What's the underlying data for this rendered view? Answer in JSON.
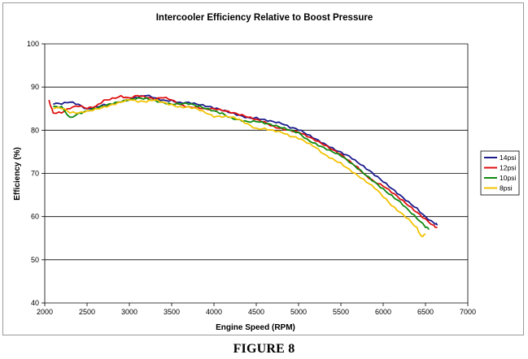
{
  "caption": "FIGURE 8",
  "chart_data": {
    "type": "line",
    "title": "Intercooler Efficiency Relative to Boost Pressure",
    "xlabel": "Engine Speed (RPM)",
    "ylabel": "Efficiency (%)",
    "xlim": [
      2000,
      7000
    ],
    "ylim": [
      40,
      100
    ],
    "xticks": [
      2000,
      2500,
      3000,
      3500,
      4000,
      4500,
      5000,
      5500,
      6000,
      6500,
      7000
    ],
    "yticks": [
      40,
      50,
      60,
      70,
      80,
      90,
      100
    ],
    "grid": "horizontal",
    "legend_position": "right",
    "series": [
      {
        "name": "14psi",
        "color": "#1a1a8c",
        "x": [
          2100,
          2200,
          2300,
          2400,
          2500,
          2600,
          2700,
          2800,
          2900,
          3000,
          3100,
          3200,
          3300,
          3400,
          3500,
          3600,
          3700,
          3800,
          3900,
          4000,
          4100,
          4200,
          4300,
          4400,
          4500,
          4600,
          4700,
          4800,
          4900,
          5000,
          5100,
          5200,
          5300,
          5400,
          5500,
          5600,
          5700,
          5800,
          5900,
          6000,
          6100,
          6200,
          6300,
          6400,
          6500,
          6600,
          6640
        ],
        "y": [
          86,
          86,
          86.5,
          86,
          85,
          85.5,
          86,
          86,
          86.5,
          87,
          87.5,
          88,
          87.5,
          87,
          87,
          86.5,
          86.5,
          86,
          85.5,
          85,
          84.5,
          84,
          83.5,
          83,
          83,
          82.5,
          82,
          81.5,
          80.5,
          80,
          79,
          78,
          77,
          76,
          75,
          74,
          72.5,
          71,
          69.5,
          68,
          66.5,
          65,
          63.5,
          62,
          60,
          58.5,
          58
        ]
      },
      {
        "name": "12psi",
        "color": "#e01010",
        "x": [
          2050,
          2100,
          2200,
          2300,
          2400,
          2500,
          2600,
          2700,
          2800,
          2900,
          3000,
          3100,
          3200,
          3300,
          3400,
          3500,
          3600,
          3700,
          3800,
          3900,
          4000,
          4100,
          4200,
          4300,
          4400,
          4500,
          4600,
          4700,
          4800,
          4900,
          5000,
          5100,
          5200,
          5300,
          5400,
          5500,
          5600,
          5700,
          5800,
          5900,
          6000,
          6100,
          6200,
          6300,
          6400,
          6500,
          6600,
          6640
        ],
        "y": [
          87,
          84,
          84,
          85,
          85.5,
          85,
          85.5,
          87,
          87.5,
          88,
          87.5,
          88,
          87.5,
          87,
          87.5,
          87,
          86,
          85.5,
          85.5,
          85,
          85,
          84.5,
          84,
          83.5,
          83,
          82.5,
          82,
          81,
          80.5,
          80,
          79.5,
          78.5,
          77.5,
          76.5,
          75.5,
          74.5,
          73,
          71.5,
          69.5,
          68,
          67,
          65.5,
          64,
          62.5,
          61,
          59.5,
          58,
          57.5
        ]
      },
      {
        "name": "10psi",
        "color": "#108a10",
        "x": [
          2100,
          2200,
          2300,
          2400,
          2500,
          2600,
          2700,
          2800,
          2900,
          3000,
          3100,
          3200,
          3300,
          3400,
          3500,
          3600,
          3700,
          3800,
          3900,
          4000,
          4100,
          4200,
          4300,
          4400,
          4500,
          4600,
          4700,
          4800,
          4900,
          5000,
          5100,
          5200,
          5300,
          5400,
          5500,
          5600,
          5700,
          5800,
          5900,
          6000,
          6100,
          6200,
          6300,
          6400,
          6500,
          6540
        ],
        "y": [
          85.5,
          85.5,
          83,
          84,
          84.5,
          85,
          85.5,
          86,
          86.5,
          87,
          87.5,
          87.5,
          87,
          86.5,
          86,
          86,
          86,
          85.5,
          85,
          84.5,
          84,
          83,
          82.5,
          82,
          82,
          81.5,
          81,
          80.5,
          80,
          79.5,
          78,
          77,
          76,
          75,
          74,
          72.5,
          71,
          69.5,
          68,
          66.5,
          65,
          63.5,
          61.5,
          59.5,
          57.5,
          57
        ]
      },
      {
        "name": "8psi",
        "color": "#f2c200",
        "x": [
          2100,
          2200,
          2300,
          2400,
          2500,
          2600,
          2700,
          2800,
          2900,
          3000,
          3100,
          3200,
          3300,
          3400,
          3500,
          3600,
          3700,
          3800,
          3900,
          4000,
          4100,
          4200,
          4300,
          4400,
          4500,
          4600,
          4700,
          4800,
          4900,
          5000,
          5100,
          5200,
          5300,
          5400,
          5500,
          5600,
          5700,
          5800,
          5900,
          6000,
          6100,
          6200,
          6300,
          6400,
          6450,
          6500
        ],
        "y": [
          85,
          85,
          84,
          84,
          84.5,
          85,
          85.5,
          86,
          86.5,
          87,
          86.5,
          86.5,
          87,
          86.5,
          86,
          85.5,
          85.5,
          85,
          84,
          83,
          83,
          83,
          82.5,
          81.5,
          80.5,
          80.5,
          80,
          79.5,
          78.5,
          78,
          77,
          76,
          74.5,
          73.5,
          72.5,
          71,
          69.5,
          68,
          66.5,
          64.5,
          62.5,
          61,
          59.5,
          57.5,
          55.5,
          56
        ]
      }
    ]
  }
}
